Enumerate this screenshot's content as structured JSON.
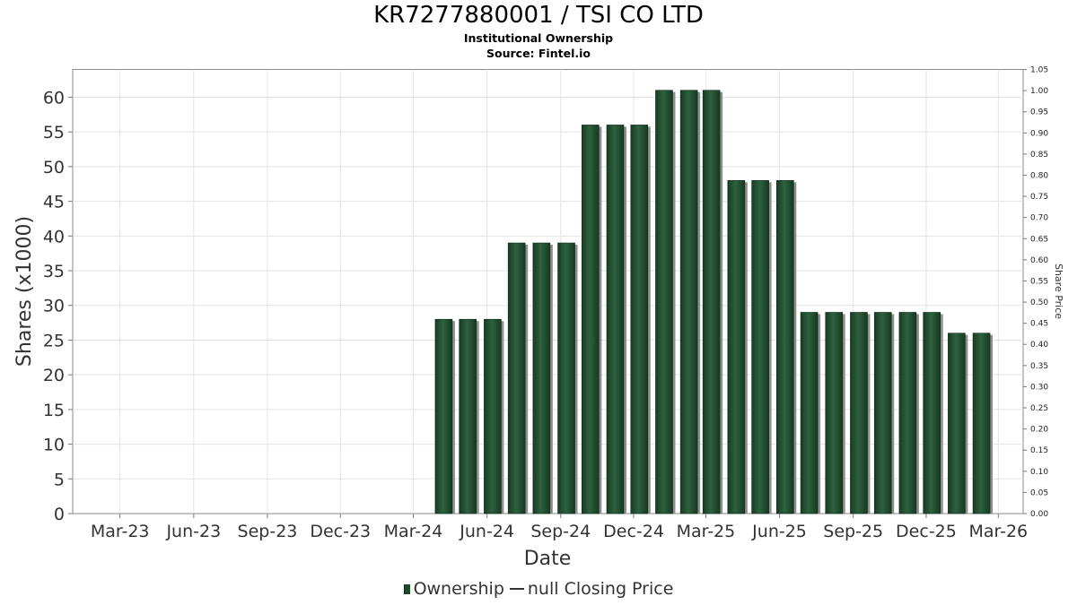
{
  "chart_data": {
    "type": "bar",
    "title": "KR7277880001 / TSI CO LTD",
    "subtitle_1": "Institutional Ownership",
    "subtitle_2": "Source: Fintel.io",
    "xlabel": "Date",
    "ylabel": "Shares (x1000)",
    "y2label": "Share Price",
    "ylim": [
      0,
      64
    ],
    "y2lim": [
      0,
      1.05
    ],
    "yticks": [
      0,
      5,
      10,
      15,
      20,
      25,
      30,
      35,
      40,
      45,
      50,
      55,
      60
    ],
    "y2ticks": [
      "0.00",
      "0.05",
      "0.10",
      "0.15",
      "0.20",
      "0.25",
      "0.30",
      "0.35",
      "0.40",
      "0.45",
      "0.50",
      "0.55",
      "0.60",
      "0.65",
      "0.70",
      "0.75",
      "0.80",
      "0.85",
      "0.90",
      "0.95",
      "1.00",
      "1.05"
    ],
    "xticks": [
      "Mar-23",
      "Jun-23",
      "Sep-23",
      "Dec-23",
      "Mar-24",
      "Jun-24",
      "Sep-24",
      "Dec-24",
      "Mar-25",
      "Jun-25",
      "Sep-25",
      "Dec-25",
      "Mar-26"
    ],
    "x_start": "2023-01-01",
    "x_end": "2026-04-01",
    "grid": true,
    "legend_placement": "bottom",
    "series": [
      {
        "name": "Ownership",
        "color": "#1e4a2c",
        "x": [
          "2024-04-08",
          "2024-05-08",
          "2024-06-08",
          "2024-07-08",
          "2024-08-08",
          "2024-09-08",
          "2024-10-08",
          "2024-11-08",
          "2024-12-08",
          "2025-01-08",
          "2025-02-08",
          "2025-03-08",
          "2025-04-08",
          "2025-05-08",
          "2025-06-08",
          "2025-07-08",
          "2025-08-08",
          "2025-09-08",
          "2025-10-08",
          "2025-11-08",
          "2025-12-08",
          "2026-01-08",
          "2026-02-08"
        ],
        "values": [
          28,
          28,
          28,
          39,
          39,
          39,
          56,
          56,
          56,
          61,
          61,
          61,
          48,
          48,
          48,
          29,
          29,
          29,
          29,
          29,
          29,
          26,
          26
        ]
      },
      {
        "name": "null Closing Price",
        "color": "#333333",
        "values": []
      }
    ]
  }
}
